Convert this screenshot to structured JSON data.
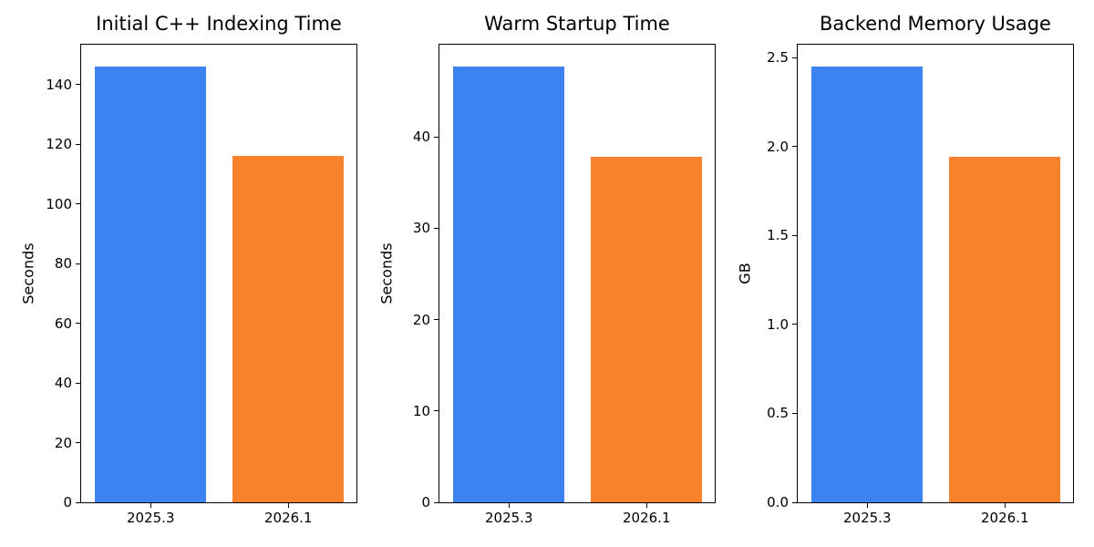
{
  "figure": {
    "background": "#ffffff",
    "text_color": "#000000",
    "spine_color": "#000000",
    "series_colors": {
      "v2025_3": "#3c82f1",
      "v2026_1": "#f8822c"
    }
  },
  "chart_data": [
    {
      "type": "bar",
      "title": "Initial C++ Indexing Time",
      "xlabel": "",
      "ylabel": "Seconds",
      "categories": [
        "2025.3",
        "2026.1"
      ],
      "values": [
        146,
        116
      ],
      "bar_colors": [
        "#3c82f1",
        "#f8822c"
      ],
      "yticks": [
        0,
        20,
        40,
        60,
        80,
        100,
        120,
        140
      ],
      "ytick_labels": [
        "0",
        "20",
        "40",
        "60",
        "80",
        "100",
        "120",
        "140"
      ],
      "ylim": [
        0,
        153.3
      ],
      "grid": false,
      "legend": null
    },
    {
      "type": "bar",
      "title": "Warm Startup Time",
      "xlabel": "",
      "ylabel": "Seconds",
      "categories": [
        "2025.3",
        "2026.1"
      ],
      "values": [
        47.7,
        37.8
      ],
      "bar_colors": [
        "#3c82f1",
        "#f8822c"
      ],
      "yticks": [
        0,
        10,
        20,
        30,
        40
      ],
      "ytick_labels": [
        "0",
        "10",
        "20",
        "30",
        "40"
      ],
      "ylim": [
        0,
        50.09
      ],
      "grid": false,
      "legend": null
    },
    {
      "type": "bar",
      "title": "Backend Memory Usage",
      "xlabel": "",
      "ylabel": "GB",
      "categories": [
        "2025.3",
        "2026.1"
      ],
      "values": [
        2.45,
        1.94
      ],
      "bar_colors": [
        "#3c82f1",
        "#f8822c"
      ],
      "yticks": [
        0.0,
        0.5,
        1.0,
        1.5,
        2.0,
        2.5
      ],
      "ytick_labels": [
        "0.0",
        "0.5",
        "1.0",
        "1.5",
        "2.0",
        "2.5"
      ],
      "ylim": [
        0,
        2.5725
      ],
      "grid": false,
      "legend": null
    }
  ]
}
